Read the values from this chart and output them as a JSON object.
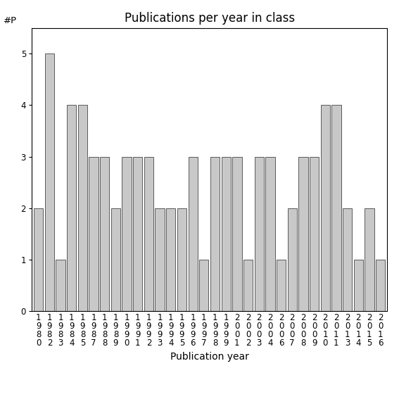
{
  "years": [
    1980,
    1982,
    1983,
    1984,
    1985,
    1987,
    1988,
    1989,
    1990,
    1991,
    1992,
    1993,
    1994,
    1995,
    1996,
    1997,
    1998,
    1999,
    2001,
    2002,
    2003,
    2004,
    2006,
    2007,
    2008,
    2009,
    2010,
    2011,
    2013,
    2014,
    2015,
    2016
  ],
  "values": [
    2,
    5,
    1,
    4,
    4,
    3,
    3,
    2,
    3,
    3,
    3,
    2,
    2,
    2,
    3,
    1,
    3,
    3,
    3,
    1,
    3,
    3,
    1,
    2,
    3,
    3,
    4,
    4,
    2,
    1,
    2,
    1
  ],
  "bar_color": "#c8c8c8",
  "bar_edge_color": "#444444",
  "title": "Publications per year in class",
  "xlabel": "Publication year",
  "ylabel": "#P",
  "ylim": [
    0,
    5.5
  ],
  "yticks": [
    0,
    1,
    2,
    3,
    4,
    5
  ],
  "background_color": "#ffffff",
  "title_fontsize": 12,
  "label_fontsize": 10,
  "tick_fontsize": 8.5
}
